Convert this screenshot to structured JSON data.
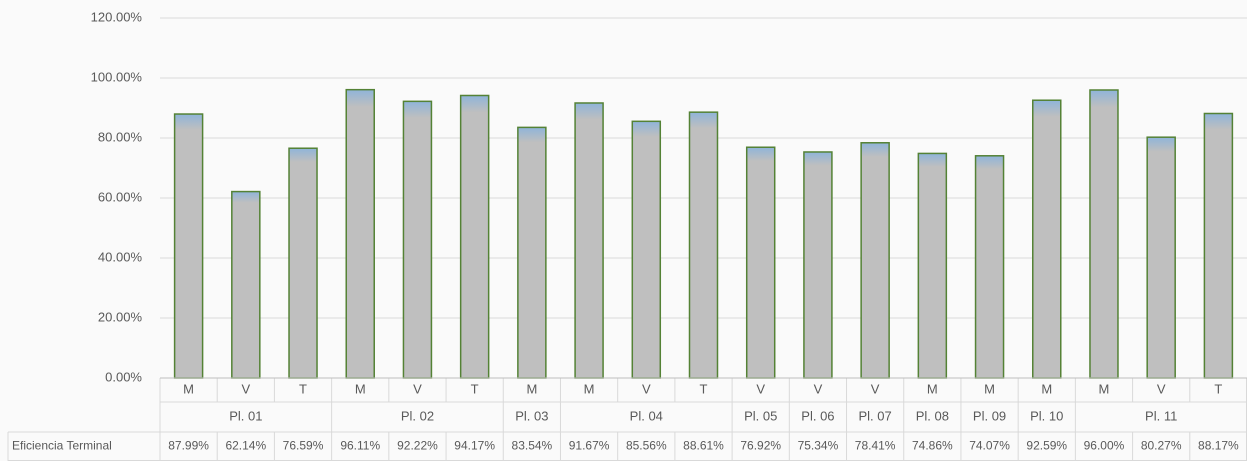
{
  "chart_data": {
    "type": "bar",
    "categories": [
      "M",
      "V",
      "T",
      "M",
      "V",
      "T",
      "M",
      "M",
      "V",
      "T",
      "V",
      "V",
      "V",
      "M",
      "M",
      "M",
      "M",
      "V",
      "T"
    ],
    "groups": [
      "Pl. 01",
      null,
      null,
      "Pl. 02",
      null,
      null,
      "Pl. 03",
      "Pl. 04",
      null,
      null,
      "Pl. 05",
      "Pl. 06",
      "Pl. 07",
      "Pl. 08",
      "Pl. 09",
      "Pl. 10",
      "Pl. 11",
      null,
      null
    ],
    "series": [
      {
        "name": "Eficiencia Terminal",
        "color": "#bfbfbf",
        "values": [
          87.99,
          62.14,
          76.59,
          96.11,
          92.22,
          94.17,
          83.54,
          91.67,
          85.56,
          88.61,
          76.92,
          75.34,
          78.41,
          74.86,
          74.07,
          92.59,
          96.0,
          80.27,
          88.17
        ],
        "value_labels": [
          "87.99%",
          "62.14%",
          "76.59%",
          "96.11%",
          "92.22%",
          "94.17%",
          "83.54%",
          "91.67%",
          "85.56%",
          "88.61%",
          "76.92%",
          "75.34%",
          "78.41%",
          "74.86%",
          "74.07%",
          "92.59%",
          "96.00%",
          "80.27%",
          "88.17%"
        ]
      }
    ],
    "ylim": [
      0,
      120
    ],
    "yticks": [
      {
        "value": 0,
        "label": "0.00%"
      },
      {
        "value": 20,
        "label": "20.00%"
      },
      {
        "value": 40,
        "label": "40.00%"
      },
      {
        "value": 60,
        "label": "60.00%"
      },
      {
        "value": 80,
        "label": "80.00%"
      },
      {
        "value": 100,
        "label": "100.00%"
      },
      {
        "value": 120,
        "label": "120.00%"
      }
    ],
    "grid": true
  }
}
